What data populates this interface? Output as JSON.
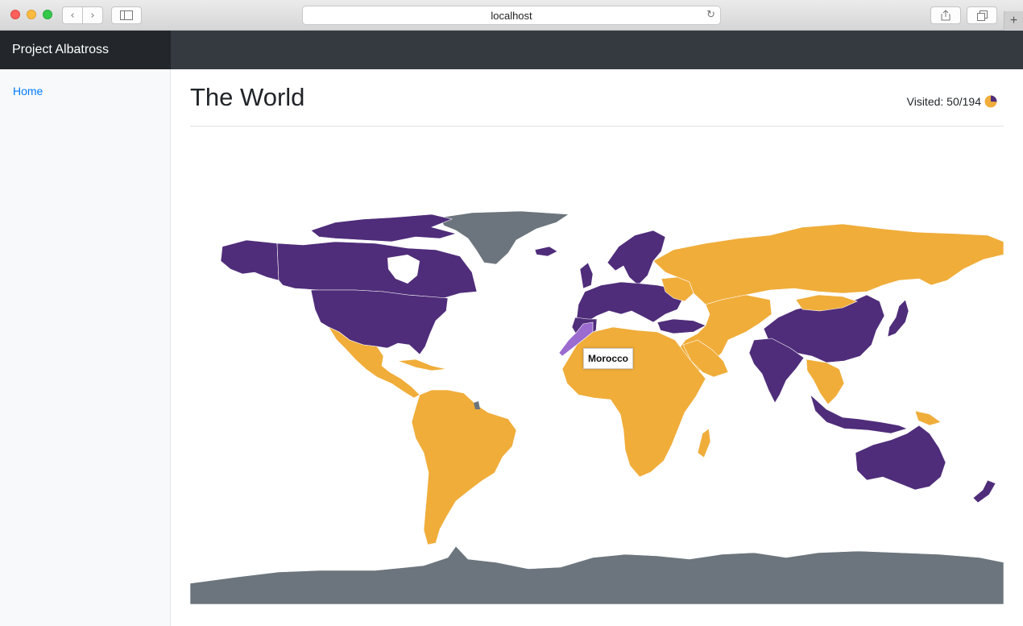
{
  "browser": {
    "url": "localhost"
  },
  "app": {
    "brand": "Project Albatross"
  },
  "sidebar": {
    "items": [
      {
        "label": "Home"
      }
    ]
  },
  "page": {
    "title": "The World",
    "visited_label": "Visited: 50/194",
    "visited_count": 50,
    "visited_total": 194
  },
  "map": {
    "tooltip": "Morocco",
    "colors": {
      "visited": "#4f2d7a",
      "not_visited": "#f0ad3a",
      "hovered": "#9b6bd0",
      "unselectable": "#6c757d",
      "border": "#ffffff"
    }
  }
}
